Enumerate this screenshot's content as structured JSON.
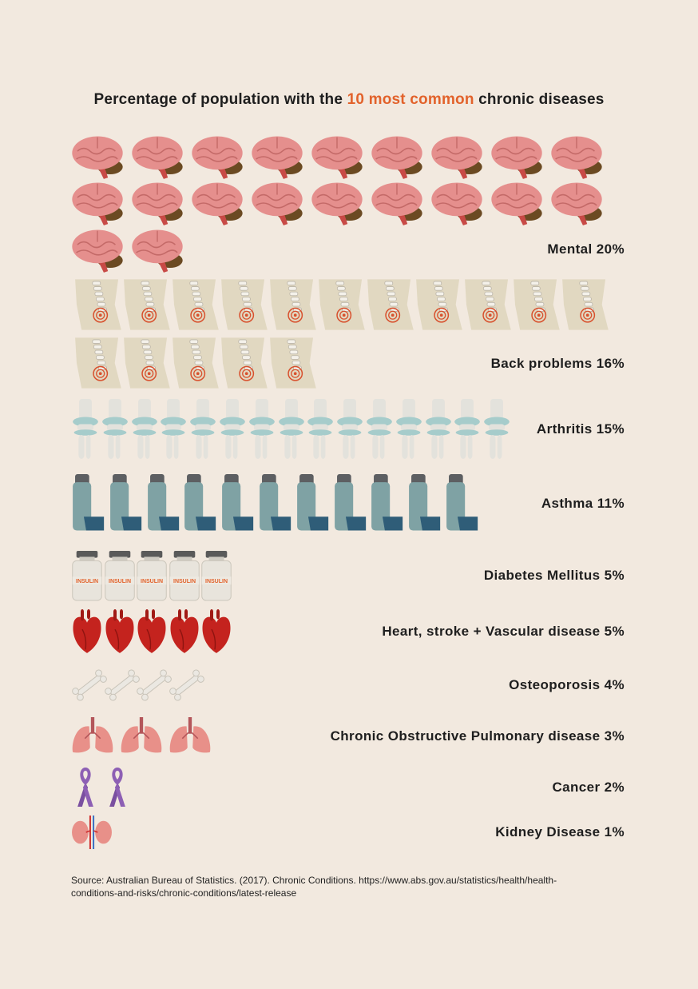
{
  "title": {
    "prefix": "Percentage of population with the ",
    "highlight": "10 most common",
    "suffix": " chronic diseases",
    "highlight_color": "#e2622b"
  },
  "chart_data": {
    "type": "pictogram",
    "title": "Percentage of population with the 10 most common chronic diseases",
    "unit": "percent",
    "categories": [
      {
        "name": "Mental",
        "label": "Mental 20%",
        "value": 20,
        "icon": "brain-icon",
        "icon_count": 20
      },
      {
        "name": "Back problems",
        "label": "Back problems 16%",
        "value": 16,
        "icon": "spine-icon",
        "icon_count": 16
      },
      {
        "name": "Arthritis",
        "label": "Arthritis 15%",
        "value": 15,
        "icon": "knee-joint-icon",
        "icon_count": 15
      },
      {
        "name": "Asthma",
        "label": "Asthma 11%",
        "value": 11,
        "icon": "inhaler-icon",
        "icon_count": 11
      },
      {
        "name": "Diabetes Mellitus",
        "label": "Diabetes Mellitus 5%",
        "value": 5,
        "icon": "insulin-vial-icon",
        "icon_count": 5,
        "icon_text": "INSULIN"
      },
      {
        "name": "Heart, stroke + Vascular disease",
        "label": "Heart, stroke + Vascular disease 5%",
        "value": 5,
        "icon": "heart-icon",
        "icon_count": 5
      },
      {
        "name": "Osteoporosis",
        "label": "Osteoporosis 4%",
        "value": 4,
        "icon": "bone-icon",
        "icon_count": 4
      },
      {
        "name": "Chronic Obstructive Pulmonary disease",
        "label": "Chronic Obstructive Pulmonary disease 3%",
        "value": 3,
        "icon": "lungs-icon",
        "icon_count": 3
      },
      {
        "name": "Cancer",
        "label": "Cancer 2%",
        "value": 2,
        "icon": "cancer-ribbon-icon",
        "icon_count": 2
      },
      {
        "name": "Kidney Disease",
        "label": "Kidney Disease 1%",
        "value": 1,
        "icon": "kidneys-icon",
        "icon_count": 1
      }
    ]
  },
  "source": {
    "line1": "Source: Australian Bureau of Statistics. (2017). Chronic Conditions. https://www.abs.gov.au/statistics/health/health-",
    "line2": "conditions-and-risks/chronic-conditions/latest-release"
  }
}
